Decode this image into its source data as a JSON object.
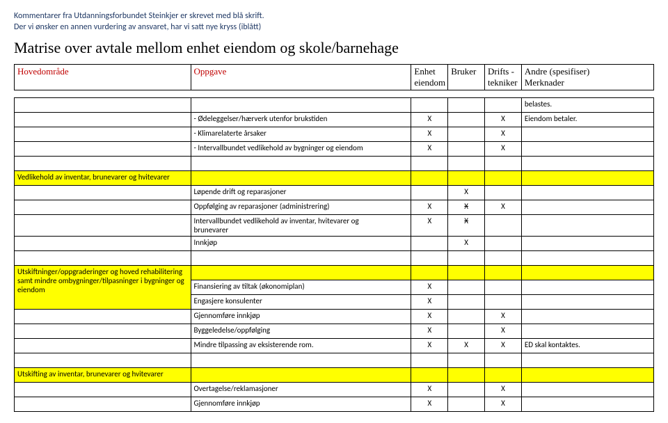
{
  "intro": {
    "line1": "Kommentarer fra Utdanningsforbundet Steinkjer er skrevet med blå skrift.",
    "line2": "Der vi ønsker en annen vurdering av ansvaret, har vi satt nye kryss (iblått)"
  },
  "title": "Matrise over avtale mellom enhet eiendom og skole/barnehage",
  "headers": {
    "h1": "Hovedområde",
    "h2": "Oppgave",
    "h3a": "Enhet",
    "h3b": "eiendom",
    "h4": "Bruker",
    "h5a": "Drifts -",
    "h5b": "tekniker",
    "h6a": "Andre (spesifiser)",
    "h6b": "Merknader"
  },
  "sec1": {
    "r1_note": "belastes.",
    "r2_t": "- Ødeleggelser/hærverk utenfor brukstiden",
    "r2_c3": "X",
    "r2_c5": "X",
    "r2_note": "Eiendom betaler.",
    "r3_t": "- Klimarelaterte årsaker",
    "r3_c3": "X",
    "r3_c5": "X",
    "r4_t": "- Intervallbundet vedlikehold av bygninger og eiendom",
    "r4_c3": "X",
    "r4_c5": "X"
  },
  "sec2": {
    "title": "Vedlikehold av inventar, brunevarer og hvitevarer",
    "r1_t": "Løpende drift og reparasjoner",
    "r1_c4": "X",
    "r2_t": "Oppfølging av reparasjoner (administrering)",
    "r2_c3": "X",
    "r2_c4s": "X",
    "r2_c5": "X",
    "r3_t1": "Intervallbundet vedlikehold av inventar, hvitevarer og",
    "r3_t2": "brunevarer",
    "r3_c3": "X",
    "r3_c4s": "X",
    "r4_t": "Innkjøp",
    "r4_c4": "X"
  },
  "sec3": {
    "title1": "Utskiftninger/oppgraderinger og hoved rehabilitering",
    "title2": "samt mindre ombygninger/tilpasninger i bygninger og",
    "title3": "eiendom",
    "r1_t": "Finansiering av tiltak (økonomiplan)",
    "r1_c3": "X",
    "r2_t": "Engasjere konsulenter",
    "r2_c3": "X",
    "r3_t": "Gjennomføre innkjøp",
    "r3_c3": "X",
    "r3_c5": "X",
    "r4_t": "Byggeledelse/oppfølging",
    "r4_c3": "X",
    "r4_c5": "X",
    "r5_t": "Mindre tilpassing av eksisterende rom.",
    "r5_c3": "X",
    "r5_c4": "X",
    "r5_c5": "X",
    "r5_note": "ED skal kontaktes."
  },
  "sec4": {
    "title": "Utskifting av inventar, brunevarer og hvitevarer",
    "r1_t": "Overtagelse/reklamasjoner",
    "r1_c3": "X",
    "r1_c5": "X",
    "r2_t": "Gjennomføre innkjøp",
    "r2_c3": "X",
    "r2_c5": "X"
  }
}
